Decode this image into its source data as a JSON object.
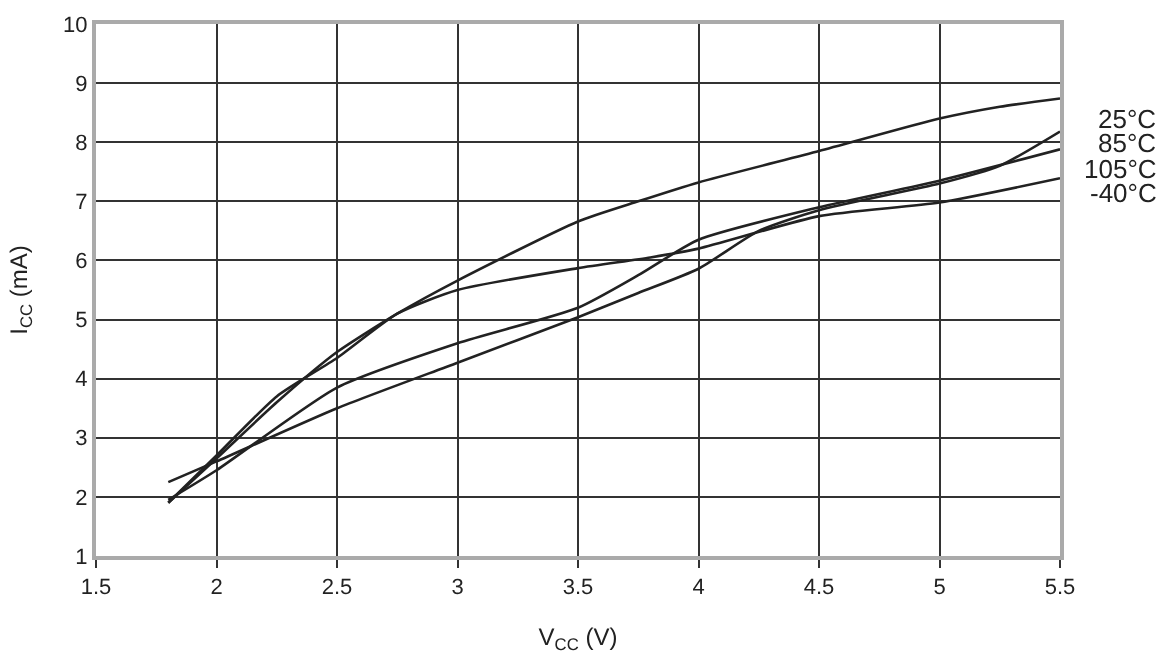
{
  "chart_data": {
    "type": "line",
    "xlabel": "V$_{CC}$ (V)",
    "ylabel": "I$_{CC}$ (mA)",
    "xlim": [
      1.5,
      5.5
    ],
    "ylim": [
      1,
      10
    ],
    "xticks": [
      1.5,
      2,
      2.5,
      3,
      3.5,
      4,
      4.5,
      5,
      5.5
    ],
    "yticks": [
      1,
      2,
      3,
      4,
      5,
      6,
      7,
      8,
      9,
      10
    ],
    "grid": true,
    "legend": false,
    "marker": "none",
    "line_style": "solid",
    "series": [
      {
        "name": "25°C",
        "color": "#222222",
        "x": [
          1.8,
          2,
          2.25,
          2.5,
          2.75,
          3,
          3.5,
          3.75,
          4,
          4.5,
          5,
          5.25,
          5.5
        ],
        "values": [
          1.9,
          2.65,
          3.6,
          4.45,
          5.1,
          5.66,
          6.66,
          7.0,
          7.32,
          7.85,
          8.4,
          8.6,
          8.74
        ]
      },
      {
        "name": "85°C",
        "color": "#222222",
        "x": [
          1.8,
          2,
          2.5,
          3,
          3.5,
          3.75,
          4,
          4.25,
          4.5,
          5,
          5.25,
          5.5
        ],
        "values": [
          2.25,
          2.6,
          3.5,
          4.27,
          5.04,
          5.45,
          5.86,
          6.5,
          6.85,
          7.3,
          7.6,
          8.18
        ]
      },
      {
        "name": "105°C",
        "color": "#222222",
        "x": [
          1.8,
          2,
          2.5,
          3,
          3.5,
          3.75,
          4,
          4.5,
          5,
          5.5
        ],
        "values": [
          1.95,
          2.45,
          3.85,
          4.6,
          5.2,
          5.75,
          6.35,
          6.9,
          7.35,
          7.88
        ]
      },
      {
        "name": "-40°C",
        "color": "#222222",
        "x": [
          1.8,
          2,
          2.25,
          2.5,
          2.75,
          3,
          3.5,
          3.8,
          4,
          4.5,
          5,
          5.5
        ],
        "values": [
          1.9,
          2.7,
          3.7,
          4.35,
          5.1,
          5.5,
          5.87,
          6.05,
          6.2,
          6.75,
          6.98,
          7.39
        ]
      }
    ]
  }
}
